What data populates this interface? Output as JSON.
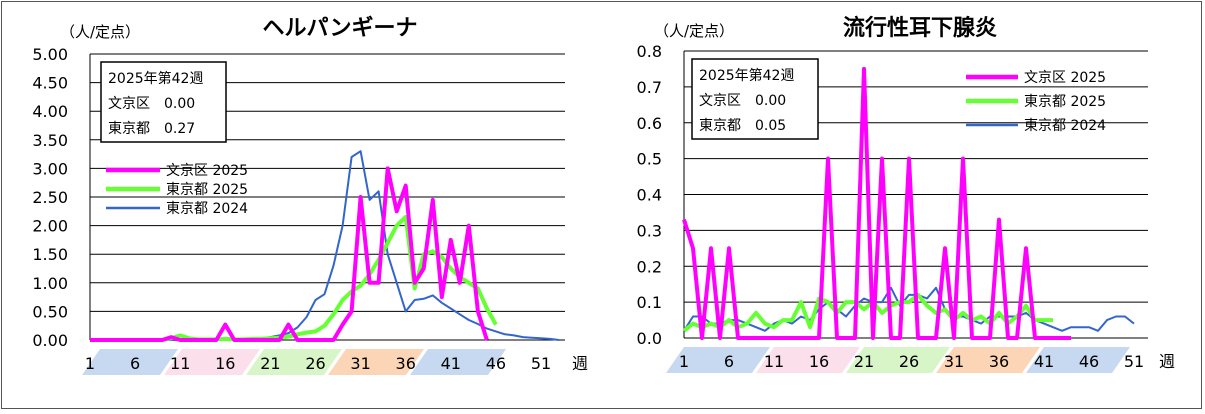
{
  "chart_data": [
    {
      "type": "line",
      "title": "ヘルパンギーナ",
      "unit_label": "（人/定点）",
      "xlabel": "週",
      "ylim": [
        0,
        5
      ],
      "y_ticks": [
        "0.00",
        "0.50",
        "1.00",
        "1.50",
        "2.00",
        "2.50",
        "3.00",
        "3.50",
        "4.00",
        "4.50",
        "5.00"
      ],
      "x_ticks": [
        "1",
        "6",
        "11",
        "16",
        "21",
        "26",
        "31",
        "36",
        "41",
        "46",
        "51"
      ],
      "x_tick_weeks": [
        1,
        6,
        11,
        16,
        21,
        26,
        31,
        36,
        41,
        46,
        51
      ],
      "season_band_colors": [
        "#c6d9f1",
        "#fbe0ec",
        "#d8f5c8",
        "#fbd5b5",
        "#c6d9f1"
      ],
      "info_box": [
        "2025年第42週",
        "文京区　0.00",
        "東京都　0.27"
      ],
      "legend_position": "left-middle",
      "grid": true,
      "series": [
        {
          "name": "文京区 2025",
          "color": "#ff00ff",
          "width": 4,
          "values": [
            0,
            0,
            0,
            0,
            0,
            0,
            0,
            0,
            0,
            0.05,
            0,
            0,
            0,
            0,
            0,
            0.27,
            0,
            0,
            0,
            0,
            0,
            0,
            0.27,
            0,
            0,
            0,
            0,
            0,
            0.27,
            0.5,
            2.5,
            1.0,
            1.0,
            3.0,
            2.25,
            2.7,
            1.0,
            1.25,
            2.45,
            0.75,
            1.75,
            1.0,
            2.0,
            0.5,
            0
          ]
        },
        {
          "name": "東京都 2025",
          "color": "#66ff33",
          "width": 4,
          "values": [
            0,
            0,
            0,
            0,
            0,
            0,
            0,
            0,
            0,
            0.03,
            0.08,
            0.03,
            0.01,
            0.01,
            0.01,
            0.02,
            0.01,
            0.01,
            0.02,
            0.02,
            0.03,
            0.04,
            0.06,
            0.1,
            0.13,
            0.15,
            0.25,
            0.45,
            0.7,
            0.85,
            0.95,
            1.15,
            1.4,
            1.7,
            2.0,
            2.15,
            0.9,
            1.5,
            1.55,
            1.45,
            1.25,
            1.1,
            1.0,
            0.9,
            0.55,
            0.27
          ]
        },
        {
          "name": "東京都 2024",
          "color": "#3366cc",
          "width": 2,
          "values": [
            0,
            0,
            0,
            0,
            0,
            0,
            0,
            0,
            0,
            0,
            0,
            0,
            0.01,
            0.01,
            0.02,
            0.02,
            0.02,
            0.02,
            0.03,
            0.03,
            0.05,
            0.08,
            0.12,
            0.22,
            0.4,
            0.7,
            0.8,
            1.3,
            2.0,
            3.2,
            3.3,
            2.45,
            2.6,
            1.5,
            1.0,
            0.5,
            0.7,
            0.72,
            0.78,
            0.65,
            0.55,
            0.45,
            0.35,
            0.28,
            0.2,
            0.15,
            0.1,
            0.08,
            0.05,
            0.04,
            0.03,
            0.02,
            0
          ]
        }
      ]
    },
    {
      "type": "line",
      "title": "流行性耳下腺炎",
      "unit_label": "（人/定点）",
      "xlabel": "週",
      "ylim": [
        0,
        0.8
      ],
      "y_ticks": [
        "0.0",
        "0.1",
        "0.2",
        "0.3",
        "0.4",
        "0.5",
        "0.6",
        "0.7",
        "0.8"
      ],
      "x_ticks": [
        "1",
        "6",
        "11",
        "16",
        "21",
        "26",
        "31",
        "36",
        "41",
        "46",
        "51"
      ],
      "x_tick_weeks": [
        1,
        6,
        11,
        16,
        21,
        26,
        31,
        36,
        41,
        46,
        51
      ],
      "season_band_colors": [
        "#c6d9f1",
        "#fbe0ec",
        "#d8f5c8",
        "#fbd5b5",
        "#c6d9f1"
      ],
      "info_box": [
        "2025年第42週",
        "文京区　0.00",
        "東京都　0.05"
      ],
      "legend_position": "top-right",
      "grid": true,
      "series": [
        {
          "name": "文京区 2025",
          "color": "#ff00ff",
          "width": 4,
          "values": [
            0.33,
            0.25,
            0,
            0.25,
            0,
            0.25,
            0,
            0,
            0,
            0,
            0,
            0,
            0,
            0,
            0,
            0,
            0.5,
            0,
            0,
            0,
            0.75,
            0,
            0.5,
            0,
            0,
            0.5,
            0,
            0,
            0,
            0.25,
            0,
            0.5,
            0,
            0,
            0,
            0.33,
            0,
            0,
            0.25,
            0,
            0,
            0,
            0,
            0
          ]
        },
        {
          "name": "東京都 2025",
          "color": "#66ff33",
          "width": 4,
          "values": [
            0.02,
            0.04,
            0.03,
            0.04,
            0.03,
            0.05,
            0.03,
            0.04,
            0.07,
            0.04,
            0.03,
            0.05,
            0.05,
            0.1,
            0.03,
            0.11,
            0.1,
            0.07,
            0.1,
            0.1,
            0.08,
            0.1,
            0.07,
            0.09,
            0.1,
            0.1,
            0.12,
            0.09,
            0.07,
            0.08,
            0.05,
            0.07,
            0.05,
            0.06,
            0.04,
            0.07,
            0.04,
            0.06,
            0.09,
            0.05,
            0.05,
            0.05
          ]
        },
        {
          "name": "東京都 2024",
          "color": "#3366cc",
          "width": 2,
          "values": [
            0.02,
            0.06,
            0.06,
            0.04,
            0.04,
            0.05,
            0.05,
            0.04,
            0.03,
            0.02,
            0.04,
            0.05,
            0.04,
            0.06,
            0.05,
            0.08,
            0.1,
            0.08,
            0.06,
            0.09,
            0.11,
            0.1,
            0.1,
            0.14,
            0.09,
            0.12,
            0.12,
            0.11,
            0.14,
            0.08,
            0.06,
            0.06,
            0.05,
            0.04,
            0.06,
            0.06,
            0.06,
            0.06,
            0.07,
            0.05,
            0.04,
            0.03,
            0.02,
            0.03,
            0.03,
            0.03,
            0.02,
            0.05,
            0.06,
            0.06,
            0.04
          ]
        }
      ]
    }
  ]
}
